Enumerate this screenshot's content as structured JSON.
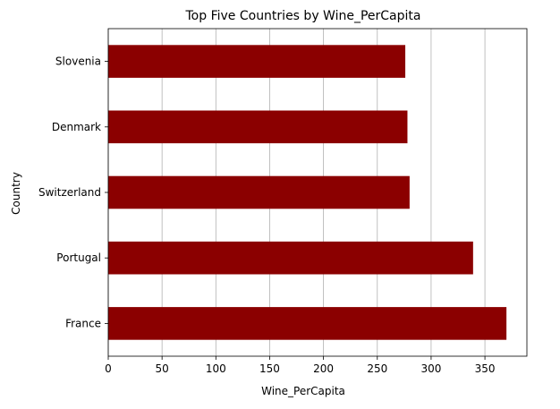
{
  "chart_data": {
    "type": "bar",
    "orientation": "horizontal",
    "title": "Top Five Countries by Wine_PerCapita",
    "xlabel": "Wine_PerCapita",
    "ylabel": "Country",
    "categories": [
      "France",
      "Portugal",
      "Switzerland",
      "Denmark",
      "Slovenia"
    ],
    "values": [
      370,
      339,
      280,
      278,
      276
    ],
    "xlim": [
      0,
      389
    ],
    "xticks": [
      0,
      50,
      100,
      150,
      200,
      250,
      300,
      350
    ],
    "grid": "x",
    "bar_color": "#8b0000"
  }
}
